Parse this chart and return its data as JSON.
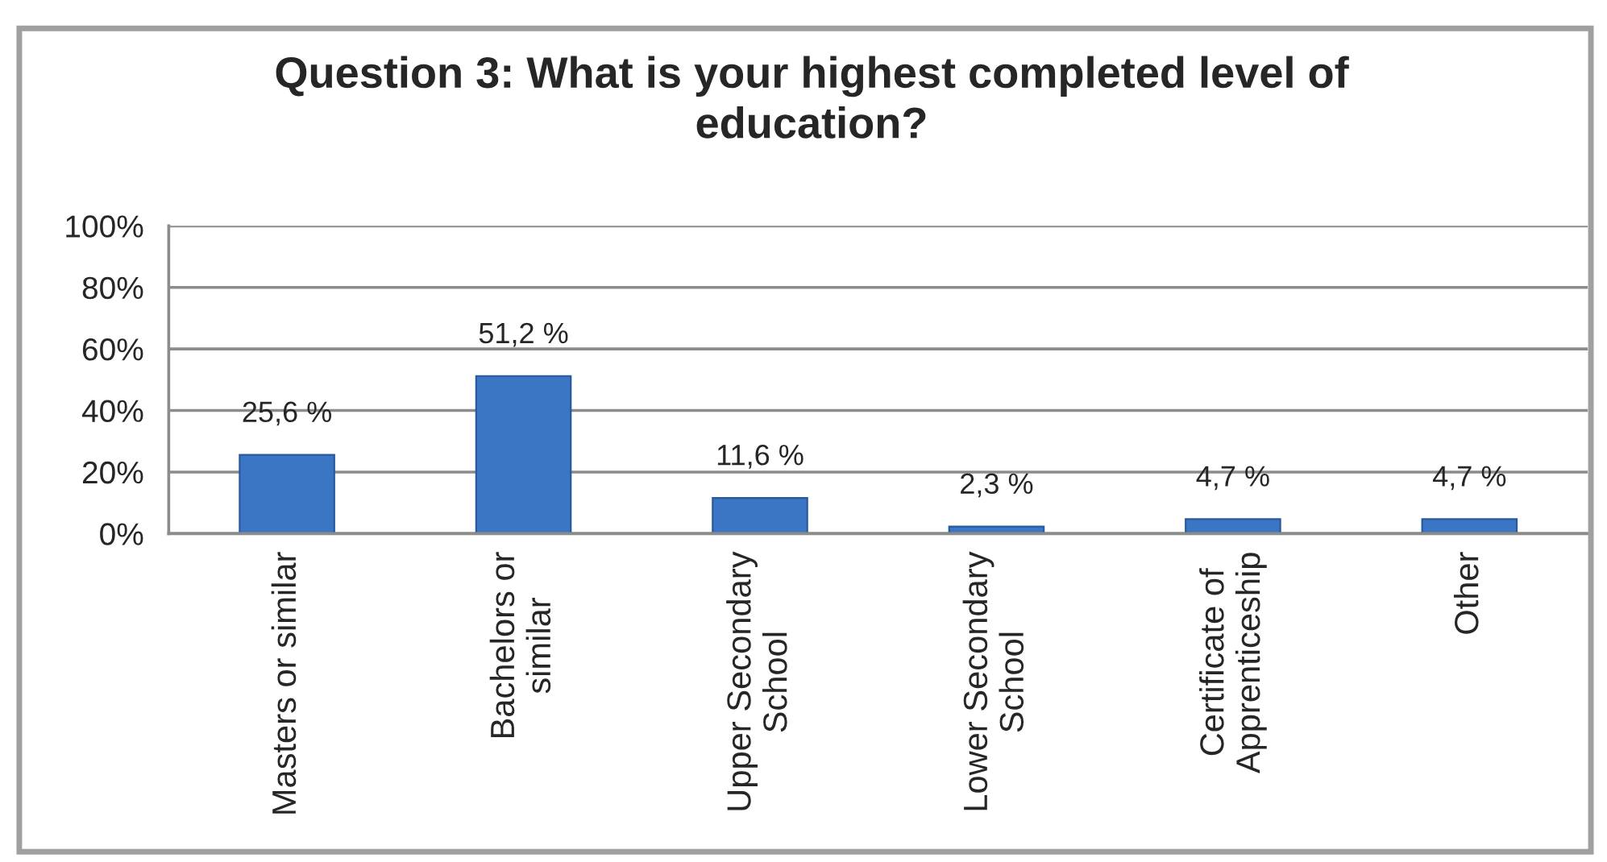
{
  "chart_data": {
    "type": "bar",
    "title": "Question 3: What is your highest completed level of\neducation?",
    "categories": [
      "Masters or similar",
      "Bachelors or\nsimilar",
      "Upper Secondary\nSchool",
      "Lower Secondary\nSchool",
      "Certificate of\nApprenticeship",
      "Other"
    ],
    "values": [
      25.6,
      51.2,
      11.6,
      2.3,
      4.7,
      4.7
    ],
    "value_labels": [
      "25,6 %",
      "51,2 %",
      "11,6 %",
      "2,3 %",
      "4,7 %",
      "4,7 %"
    ],
    "color": "#3b76c4",
    "ylim": [
      0,
      100
    ],
    "yticks": [
      {
        "value": 0,
        "label": "0%"
      },
      {
        "value": 20,
        "label": "20%"
      },
      {
        "value": 40,
        "label": "40%"
      },
      {
        "value": 60,
        "label": "60%"
      },
      {
        "value": 80,
        "label": "80%"
      },
      {
        "value": 100,
        "label": "100%"
      }
    ],
    "grid": "y"
  }
}
